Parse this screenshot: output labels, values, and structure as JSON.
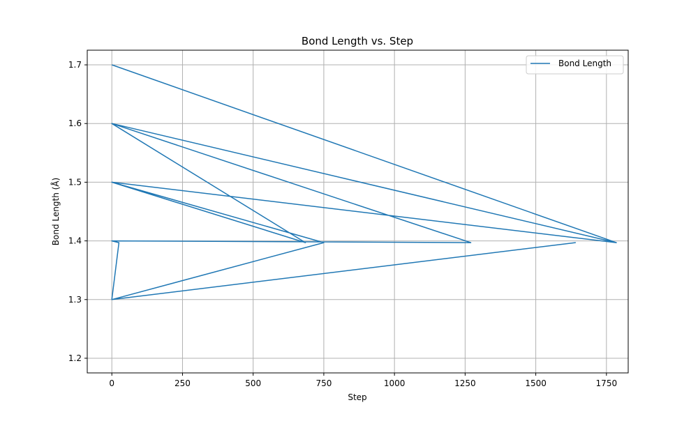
{
  "chart_data": {
    "type": "line",
    "title": "Bond Length vs. Step",
    "xlabel": "Step",
    "ylabel": "Bond Length (Å)",
    "xlim": [
      -87,
      1827
    ],
    "ylim": [
      1.175,
      1.725
    ],
    "xticks": [
      0,
      250,
      500,
      750,
      1000,
      1250,
      1500,
      1750
    ],
    "xtick_labels": [
      "0",
      "250",
      "500",
      "750",
      "1000",
      "1250",
      "1500",
      "1750"
    ],
    "yticks": [
      1.2,
      1.3,
      1.4,
      1.5,
      1.6,
      1.7
    ],
    "ytick_labels": [
      "1.2",
      "1.3",
      "1.4",
      "1.5",
      "1.6",
      "1.7"
    ],
    "grid": true,
    "legend_position": "top-right",
    "series": [
      {
        "name": "Bond Length",
        "color": "#1f77b4",
        "x": [
          0,
          1785,
          0,
          1270,
          0,
          685,
          0,
          1785,
          0,
          750,
          0,
          1640,
          0,
          25,
          0,
          1270,
          0
        ],
        "y": [
          1.7,
          1.397,
          1.6,
          1.397,
          1.6,
          1.397,
          1.5,
          1.397,
          1.5,
          1.397,
          1.3,
          1.397,
          1.3,
          1.397,
          1.4,
          1.397,
          1.4
        ]
      }
    ]
  }
}
